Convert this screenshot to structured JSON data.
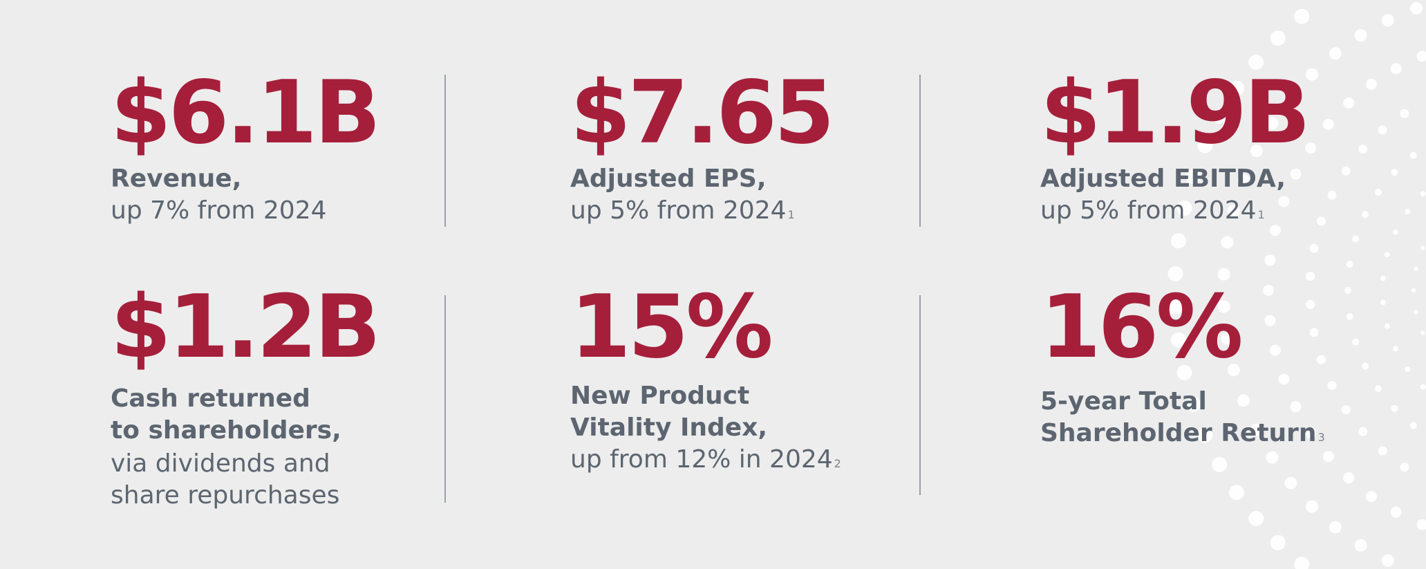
{
  "stats": [
    {
      "value": "$6.1B",
      "label": "Revenue,",
      "sub": "up 7% from 2024",
      "note": ""
    },
    {
      "value": "$7.65",
      "label": "Adjusted EPS,",
      "sub": "up 5% from 2024",
      "note": "1"
    },
    {
      "value": "$1.9B",
      "label": "Adjusted EBITDA,",
      "sub": "up 5% from 2024",
      "note": "1"
    },
    {
      "value": "$1.2B",
      "label_line1": "Cash returned",
      "label_line2": "to shareholders,",
      "sub_line1": "via dividends and",
      "sub_line2": "share repurchases"
    },
    {
      "value": "15%",
      "label_line1": "New Product",
      "label_line2": "Vitality Index,",
      "sub": "up from 12% in 2024",
      "note": "2"
    },
    {
      "value": "16%",
      "label_line1": "5-year Total",
      "label_line2": "Shareholder Return",
      "note": "3"
    }
  ],
  "colors": {
    "accent": "#a51f3b",
    "text": "#5c6570",
    "background": "#ededed",
    "dots": "#ffffff"
  }
}
